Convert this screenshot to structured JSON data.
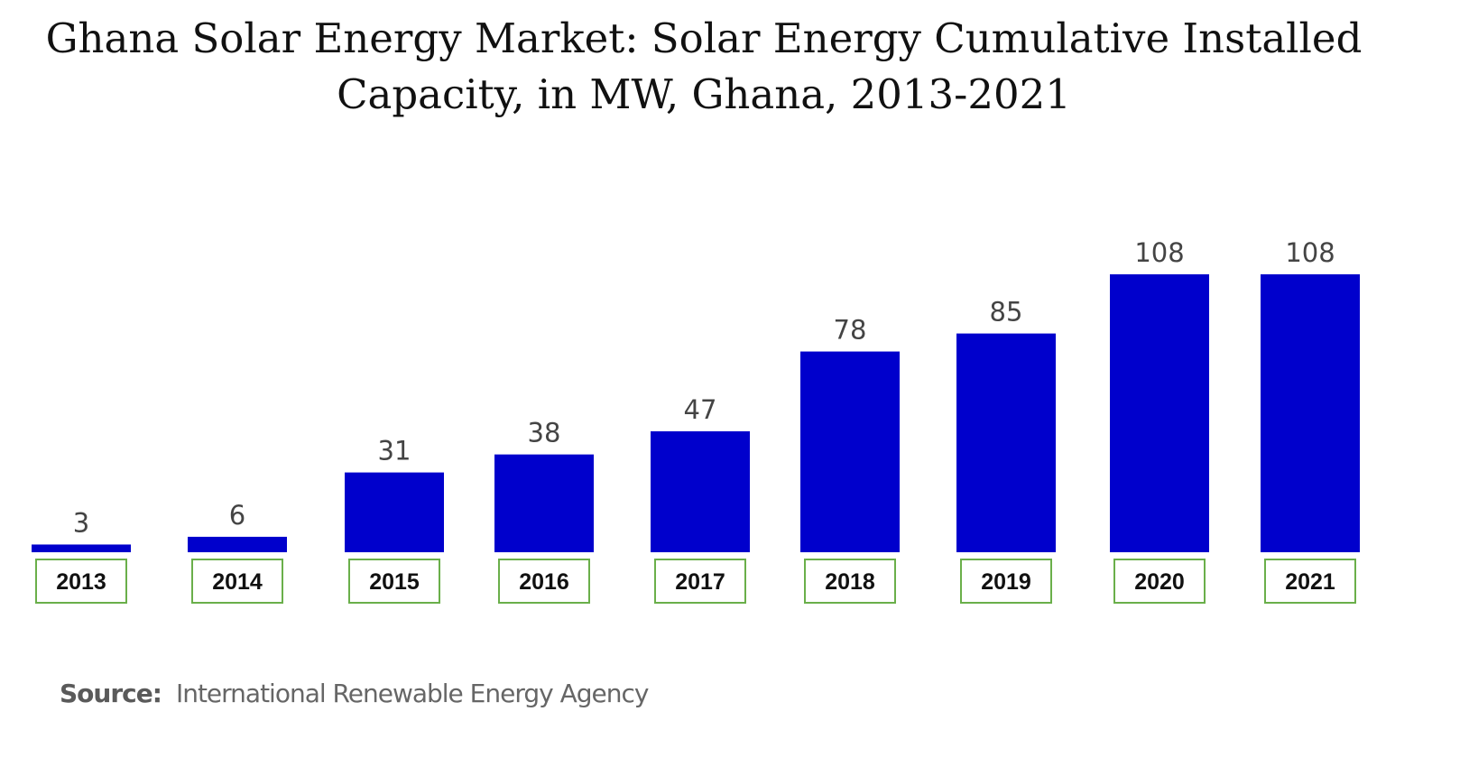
{
  "chart_data": {
    "type": "bar",
    "title": "Ghana Solar Energy Market: Solar Energy Cumulative Installed Capacity, in MW, Ghana, 2013-2021",
    "categories": [
      "2013",
      "2014",
      "2015",
      "2016",
      "2017",
      "2018",
      "2019",
      "2020",
      "2021"
    ],
    "values": [
      3,
      6,
      31,
      38,
      47,
      78,
      85,
      108,
      108
    ],
    "xlabel": "",
    "ylabel": "",
    "ylim": [
      0,
      108
    ],
    "grid": false,
    "data_labels": true,
    "colors": {
      "bar": "#0000CC",
      "category_box_border": "#6AAF4A"
    }
  },
  "source": {
    "label": "Source:",
    "text": "International Renewable Energy Agency"
  }
}
